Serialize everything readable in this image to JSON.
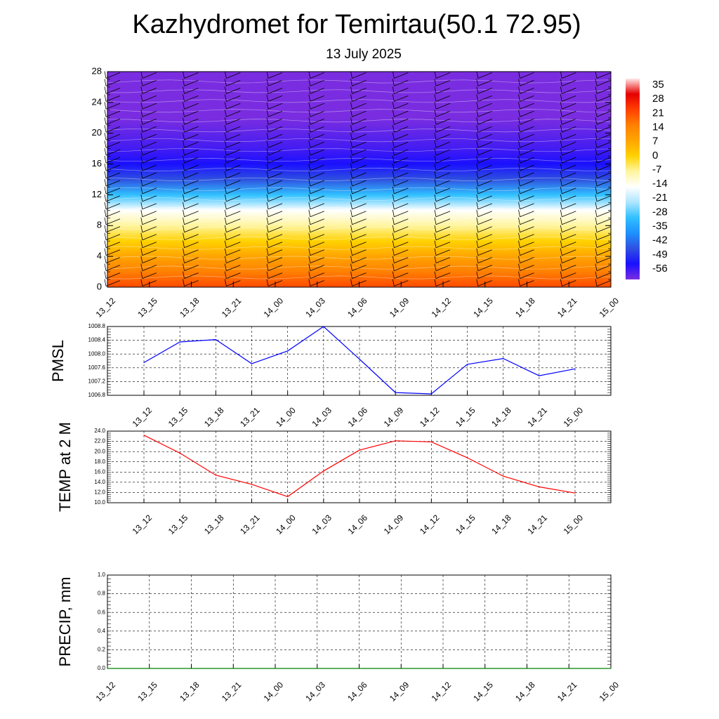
{
  "header": {
    "title": "Kazhydromet for Temirtau(50.1 72.95)",
    "subtitle": "13 July 2025"
  },
  "colorbar": {
    "labels": [
      "35",
      "28",
      "21",
      "14",
      "7",
      "0",
      "-7",
      "-14",
      "-21",
      "-28",
      "-35",
      "-42",
      "-49",
      "-56"
    ],
    "stops": [
      "#ffe6e6",
      "#e60000",
      "#ff4000",
      "#ff8000",
      "#ffa500",
      "#ffd200",
      "#fff5a0",
      "#ffffff",
      "#aee6ff",
      "#30c0ff",
      "#1e90ff",
      "#2f50e0",
      "#1a10ff",
      "#7a2de0"
    ]
  },
  "chart_data": [
    {
      "type": "heatmap",
      "name": "cross-section",
      "x": [
        "13_12",
        "13_15",
        "13_18",
        "13_21",
        "14_00",
        "14_03",
        "14_06",
        "14_09",
        "14_12",
        "14_15",
        "14_18",
        "14_21",
        "15_00"
      ],
      "y_ticks": [
        "0",
        "4",
        "8",
        "12",
        "16",
        "20",
        "24",
        "28"
      ],
      "ylim": [
        0,
        28
      ],
      "levels": [
        0,
        2,
        4,
        6,
        8,
        10,
        12,
        14,
        16,
        18,
        20,
        22,
        24,
        26,
        28
      ],
      "values_by_level": [
        20,
        14,
        7,
        0,
        -7,
        -14,
        -28,
        -42,
        -49,
        -52,
        -54,
        -56,
        -60,
        -62,
        -62
      ],
      "colorbar_range": [
        -56,
        35
      ],
      "wind_barbs": true
    },
    {
      "type": "line",
      "name": "pmsl",
      "ylabel": "PMSL",
      "x": [
        "13_12",
        "13_15",
        "13_18",
        "13_21",
        "14_00",
        "14_03",
        "14_06",
        "14_09",
        "14_12",
        "14_15",
        "14_18",
        "14_21",
        "15_00"
      ],
      "values": [
        1007.75,
        1008.35,
        1008.42,
        1007.72,
        1008.09,
        1008.8,
        1007.85,
        1006.88,
        1006.84,
        1007.7,
        1007.87,
        1007.37,
        1007.57
      ],
      "ylim": [
        1006.8,
        1008.8
      ],
      "yticks": [
        "1006.8",
        "1007.2",
        "1007.6",
        "1008.0",
        "1008.4",
        "1008.8"
      ],
      "color": "#0000ff",
      "grid": true
    },
    {
      "type": "line",
      "name": "temp",
      "ylabel": "TEMP at 2 M",
      "x": [
        "13_12",
        "13_15",
        "13_18",
        "13_21",
        "14_00",
        "14_03",
        "14_06",
        "14_09",
        "14_12",
        "14_15",
        "14_18",
        "14_21",
        "15_00"
      ],
      "values": [
        23.2,
        19.7,
        15.4,
        13.6,
        11.2,
        16.2,
        20.3,
        22.1,
        21.9,
        18.8,
        15.2,
        13.1,
        11.9
      ],
      "ylim": [
        10.0,
        24.0
      ],
      "yticks": [
        "10.0",
        "12.0",
        "14.0",
        "16.0",
        "18.0",
        "20.0",
        "22.0",
        "24.0"
      ],
      "color": "#ff0000",
      "grid": true
    },
    {
      "type": "line",
      "name": "precip",
      "ylabel": "PRECIP, mm",
      "x": [
        "13_12",
        "13_15",
        "13_18",
        "13_21",
        "14_00",
        "14_03",
        "14_06",
        "14_09",
        "14_12",
        "14_15",
        "14_18",
        "14_21",
        "15_00"
      ],
      "values": [
        0,
        0,
        0,
        0,
        0,
        0,
        0,
        0,
        0,
        0,
        0,
        0,
        0
      ],
      "ylim": [
        0.0,
        1.0
      ],
      "yticks": [
        "0.0",
        "0.2",
        "0.4",
        "0.6",
        "0.8",
        "1.0"
      ],
      "color": "#008000",
      "grid": true
    }
  ]
}
